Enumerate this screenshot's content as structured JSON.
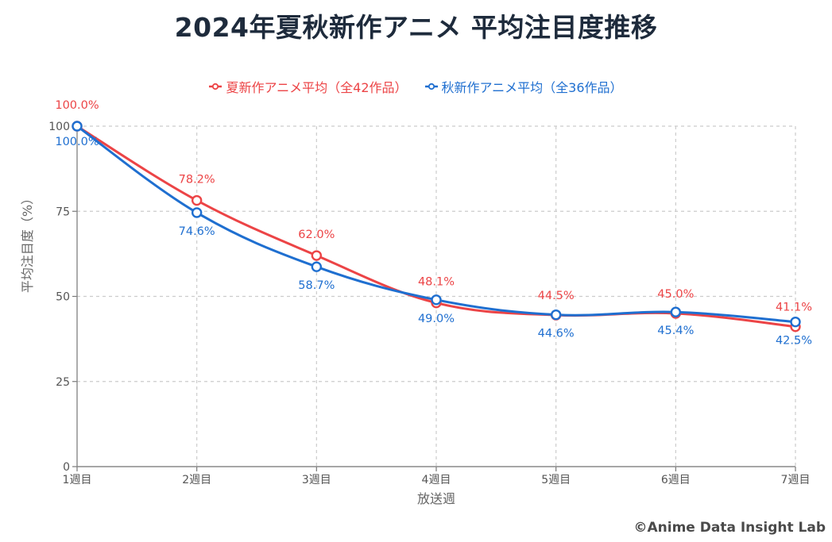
{
  "chart_data": {
    "type": "line",
    "title": "2024年夏秋新作アニメ 平均注目度推移",
    "xlabel": "放送週",
    "ylabel": "平均注目度（%）",
    "categories": [
      "1週目",
      "2週目",
      "3週目",
      "4週目",
      "5週目",
      "6週目",
      "7週目"
    ],
    "ylim": [
      0,
      100
    ],
    "yticks": [
      0,
      25,
      50,
      75,
      100
    ],
    "grid": true,
    "legend_position": "top-center",
    "series": [
      {
        "name": "夏新作アニメ平均（全42作品）",
        "color": "#ec4446",
        "values": [
          100.0,
          78.2,
          62.0,
          48.1,
          44.5,
          45.0,
          41.1
        ],
        "labels": [
          "100.0%",
          "78.2%",
          "62.0%",
          "48.1%",
          "44.5%",
          "45.0%",
          "41.1%"
        ]
      },
      {
        "name": "秋新作アニメ平均（全36作品）",
        "color": "#1f6fd0",
        "values": [
          100.0,
          74.6,
          58.7,
          49.0,
          44.6,
          45.4,
          42.5
        ],
        "labels": [
          "100.0%",
          "74.6%",
          "58.7%",
          "49.0%",
          "44.6%",
          "45.4%",
          "42.5%"
        ]
      }
    ]
  },
  "credit": "©Anime Data Insight Lab"
}
